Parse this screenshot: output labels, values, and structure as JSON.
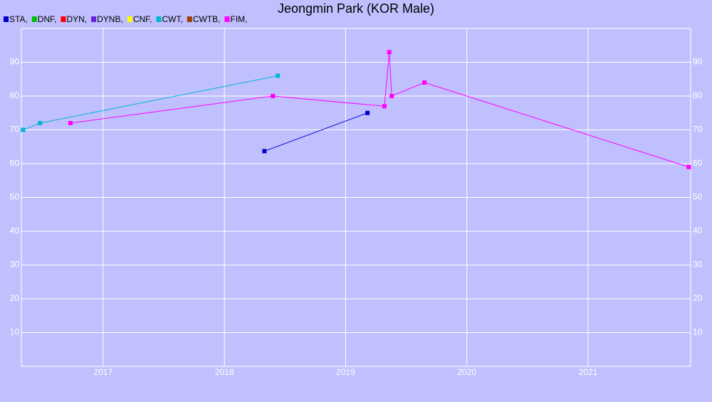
{
  "chart_data": {
    "type": "line",
    "title": "Jeongmin Park (KOR Male)",
    "series": [
      {
        "name": "STA,",
        "color": "#0000cc",
        "x": [
          2018.33,
          2019.18
        ],
        "values": [
          63.7,
          75
        ]
      },
      {
        "name": "DNF,",
        "color": "#00c000",
        "x": [],
        "values": []
      },
      {
        "name": "DYN,",
        "color": "#ff0000",
        "x": [],
        "values": []
      },
      {
        "name": "DYNB,",
        "color": "#6a1fe0",
        "x": [],
        "values": []
      },
      {
        "name": "CNF,",
        "color": "#ffff00",
        "x": [],
        "values": []
      },
      {
        "name": "CWT,",
        "color": "#00b8d0",
        "x": [
          2016.34,
          2016.48,
          2018.44
        ],
        "values": [
          70,
          72,
          86
        ]
      },
      {
        "name": "CWTB,",
        "color": "#a04000",
        "x": [],
        "values": []
      },
      {
        "name": "FIM,",
        "color": "#ff00ff",
        "x": [
          2016.73,
          2018.4,
          2019.32,
          2019.36,
          2019.38,
          2019.65,
          2021.83
        ],
        "values": [
          72,
          80,
          77,
          93,
          80,
          84,
          59
        ]
      }
    ],
    "xlim": [
      2016.325,
      2021.846
    ],
    "xticks": [
      2017,
      2018,
      2019,
      2020,
      2021
    ],
    "ylim": [
      0,
      100
    ],
    "yticks": [
      10,
      20,
      30,
      40,
      50,
      60,
      70,
      80,
      90
    ],
    "grid": true
  }
}
